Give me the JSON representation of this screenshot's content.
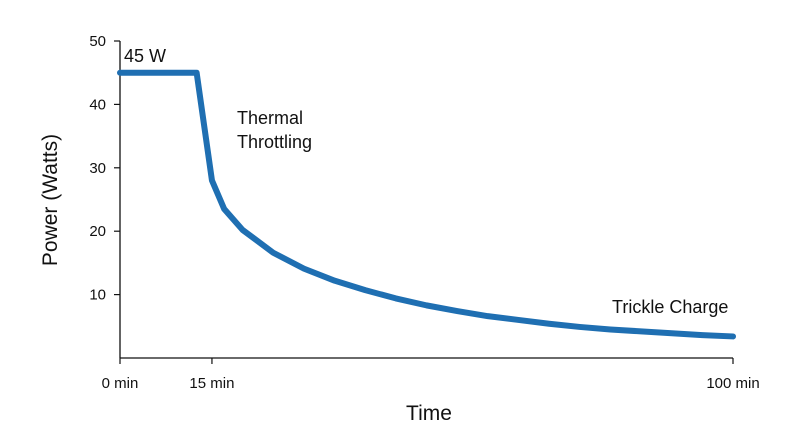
{
  "chart_data": {
    "type": "line",
    "title": "",
    "xlabel": "Time",
    "ylabel": "Power (Watts)",
    "xlim": [
      0,
      100
    ],
    "ylim": [
      0,
      50
    ],
    "x_ticks": [
      {
        "value": 0,
        "label": "0 min"
      },
      {
        "value": 15,
        "label": "15 min"
      },
      {
        "value": 100,
        "label": "100 min"
      }
    ],
    "y_ticks": [
      {
        "value": 10,
        "label": "10"
      },
      {
        "value": 20,
        "label": "20"
      },
      {
        "value": 30,
        "label": "30"
      },
      {
        "value": 40,
        "label": "40"
      },
      {
        "value": 50,
        "label": "50"
      }
    ],
    "grid": false,
    "legend": false,
    "series": [
      {
        "color": "#1f6fb2",
        "points": [
          {
            "x": 0,
            "y": 45
          },
          {
            "x": 12.5,
            "y": 45
          },
          {
            "x": 15,
            "y": 28
          },
          {
            "x": 17,
            "y": 23.5
          },
          {
            "x": 20,
            "y": 20.2
          },
          {
            "x": 25,
            "y": 16.6
          },
          {
            "x": 30,
            "y": 14.1
          },
          {
            "x": 35,
            "y": 12.2
          },
          {
            "x": 40,
            "y": 10.7
          },
          {
            "x": 45,
            "y": 9.4
          },
          {
            "x": 50,
            "y": 8.3
          },
          {
            "x": 55,
            "y": 7.4
          },
          {
            "x": 60,
            "y": 6.6
          },
          {
            "x": 65,
            "y": 6.0
          },
          {
            "x": 70,
            "y": 5.4
          },
          {
            "x": 75,
            "y": 4.9
          },
          {
            "x": 80,
            "y": 4.5
          },
          {
            "x": 85,
            "y": 4.2
          },
          {
            "x": 90,
            "y": 3.9
          },
          {
            "x": 95,
            "y": 3.6
          },
          {
            "x": 100,
            "y": 3.4
          }
        ]
      }
    ],
    "annotations": [
      {
        "id": "peak",
        "lines": [
          "45 W"
        ]
      },
      {
        "id": "throttle",
        "lines": [
          "Thermal",
          "Throttling"
        ]
      },
      {
        "id": "trickle",
        "lines": [
          "Trickle Charge"
        ]
      }
    ]
  }
}
